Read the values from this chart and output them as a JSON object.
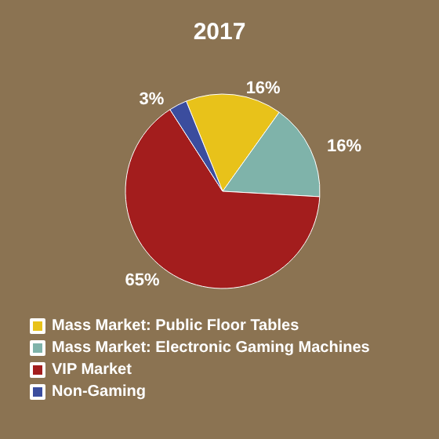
{
  "chart_data": {
    "type": "pie",
    "title": "2017",
    "categories": [
      "Mass Market: Public Floor Tables",
      "Mass Market: Electronic Gaming Machines",
      "VIP Market",
      "Non-Gaming"
    ],
    "values": [
      16,
      16,
      65,
      3
    ],
    "colors": [
      "#e8c21a",
      "#7fb3aa",
      "#a31d1d",
      "#3b4d9e"
    ],
    "value_labels": [
      "16%",
      "16%",
      "65%",
      "3%"
    ],
    "legend": "bottom"
  }
}
